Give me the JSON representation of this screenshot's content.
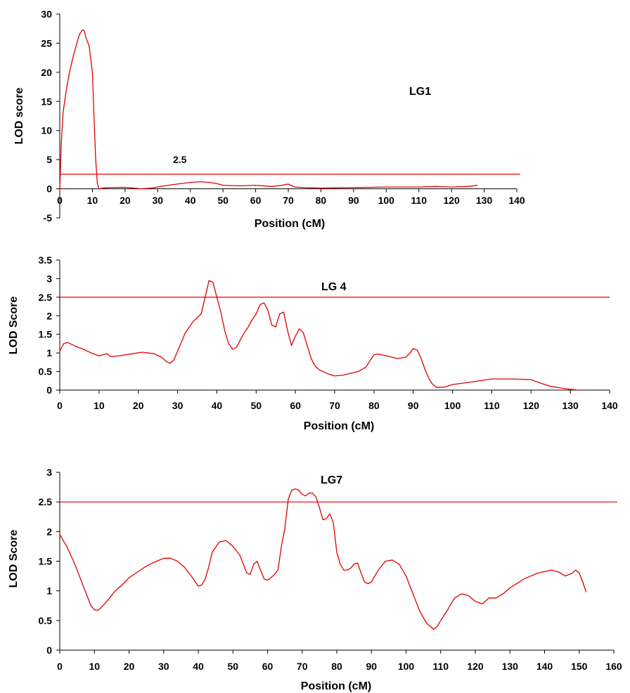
{
  "chart_data": [
    {
      "type": "line",
      "annotation": "LG1",
      "threshold_label": "2.5",
      "threshold": 2.5,
      "xlabel": "Position (cM)",
      "ylabel": "LOD score",
      "xlim": [
        0,
        140
      ],
      "ylim": [
        -5,
        30
      ],
      "x_ticks": [
        0,
        10,
        20,
        30,
        40,
        50,
        60,
        70,
        80,
        90,
        100,
        110,
        120,
        130,
        140
      ],
      "y_ticks": [
        -5,
        0,
        5,
        10,
        15,
        20,
        25,
        30
      ],
      "threshold_x_range": [
        0,
        141
      ],
      "series_color": "#e00000",
      "series": [
        {
          "x": [
            0,
            0.5,
            1,
            2,
            3,
            4,
            5,
            6,
            7,
            7.5,
            8,
            9,
            10,
            10.5,
            11,
            11.5,
            12,
            12.5,
            13,
            15,
            20,
            25,
            28,
            32,
            36,
            40,
            43,
            46,
            48,
            50,
            55,
            60,
            65,
            68,
            70,
            72,
            75,
            80,
            90,
            100,
            110,
            115,
            120,
            125,
            128
          ],
          "y": [
            0,
            8,
            13,
            17,
            20,
            22.5,
            24.5,
            26.5,
            27.3,
            27.1,
            26,
            24.5,
            20,
            12,
            5,
            1,
            0,
            0,
            0.1,
            0.2,
            0.25,
            0,
            0.1,
            0.5,
            0.8,
            1.1,
            1.2,
            1.1,
            0.9,
            0.6,
            0.5,
            0.6,
            0.4,
            0.6,
            0.8,
            0.3,
            0.2,
            0.1,
            0.2,
            0.3,
            0.3,
            0.4,
            0.3,
            0.4,
            0.6
          ]
        }
      ]
    },
    {
      "type": "line",
      "annotation": "LG 4",
      "threshold": 2.5,
      "xlabel": "Position (cM)",
      "ylabel": "LOD Score",
      "xlim": [
        0,
        140
      ],
      "ylim": [
        0,
        3.5
      ],
      "x_ticks": [
        0,
        10,
        20,
        30,
        40,
        50,
        60,
        70,
        80,
        90,
        100,
        110,
        120,
        130,
        140
      ],
      "y_ticks": [
        0,
        0.5,
        1,
        1.5,
        2,
        2.5,
        3,
        3.5
      ],
      "y_tick_labels": [
        "0",
        "0.5",
        "1",
        "1.5",
        "2",
        "2.5",
        "3",
        "3.5"
      ],
      "threshold_x_range": [
        0,
        140
      ],
      "series_color": "#e00000",
      "series": [
        {
          "x": [
            0,
            1,
            2,
            4,
            6,
            8,
            10,
            11,
            12,
            13,
            15,
            18,
            21,
            24,
            26,
            27,
            28,
            29,
            30,
            31,
            32,
            34,
            35,
            36,
            37,
            38,
            39,
            40,
            41,
            42,
            43,
            44,
            45,
            46,
            47,
            48,
            49,
            50,
            51,
            52,
            53,
            54,
            55,
            56,
            57,
            58,
            59,
            60,
            61,
            62,
            63,
            64,
            65,
            66,
            68,
            70,
            72,
            74,
            76,
            78,
            79,
            80,
            81,
            82,
            84,
            86,
            88,
            89,
            90,
            91,
            92,
            93,
            94,
            95,
            96,
            98,
            100,
            105,
            110,
            115,
            120,
            122,
            125,
            128,
            130,
            132
          ],
          "y": [
            1.05,
            1.25,
            1.28,
            1.18,
            1.1,
            1.0,
            0.92,
            0.95,
            0.98,
            0.9,
            0.92,
            0.97,
            1.02,
            0.98,
            0.88,
            0.78,
            0.72,
            0.8,
            1.05,
            1.3,
            1.55,
            1.85,
            1.95,
            2.05,
            2.5,
            2.95,
            2.9,
            2.5,
            2.1,
            1.6,
            1.25,
            1.1,
            1.15,
            1.35,
            1.55,
            1.7,
            1.9,
            2.05,
            2.3,
            2.35,
            2.15,
            1.75,
            1.7,
            2.05,
            2.1,
            1.6,
            1.2,
            1.45,
            1.65,
            1.55,
            1.2,
            0.85,
            0.65,
            0.55,
            0.45,
            0.38,
            0.4,
            0.45,
            0.5,
            0.62,
            0.8,
            0.95,
            0.97,
            0.95,
            0.9,
            0.85,
            0.88,
            0.97,
            1.12,
            1.08,
            0.85,
            0.55,
            0.3,
            0.15,
            0.07,
            0.08,
            0.15,
            0.22,
            0.3,
            0.3,
            0.28,
            0.2,
            0.1,
            0.05,
            0.02,
            0.0
          ]
        }
      ]
    },
    {
      "type": "line",
      "annotation": "LG7",
      "threshold": 2.5,
      "xlabel": "Position (cM)",
      "ylabel": "LOD Score",
      "xlim": [
        0,
        160
      ],
      "ylim": [
        0,
        3
      ],
      "x_ticks": [
        0,
        10,
        20,
        30,
        40,
        50,
        60,
        70,
        80,
        90,
        100,
        110,
        120,
        130,
        140,
        150,
        160
      ],
      "y_ticks": [
        0,
        0.5,
        1,
        1.5,
        2,
        2.5,
        3
      ],
      "y_tick_labels": [
        "0",
        "0.5",
        "1",
        "1.5",
        "2",
        "2.5",
        "3"
      ],
      "threshold_x_range": [
        0,
        161
      ],
      "series_color": "#e00000",
      "series": [
        {
          "x": [
            0,
            2,
            4,
            6,
            8,
            9,
            10,
            11,
            12,
            14,
            16,
            18,
            20,
            24,
            26,
            28,
            30,
            32,
            34,
            36,
            38,
            40,
            41,
            42,
            43,
            44,
            46,
            48,
            50,
            52,
            54,
            55,
            56,
            57,
            58,
            59,
            60,
            61,
            62,
            63,
            64,
            65,
            66,
            67,
            68,
            69,
            70,
            71,
            72,
            73,
            74,
            75,
            76,
            77,
            78,
            79,
            80,
            81,
            82,
            83,
            84,
            85,
            86,
            87,
            88,
            89,
            90,
            92,
            94,
            96,
            98,
            100,
            102,
            104,
            106,
            108,
            109,
            110,
            112,
            114,
            116,
            118,
            120,
            122,
            124,
            126,
            128,
            130,
            134,
            138,
            142,
            144,
            146,
            148,
            149,
            150,
            151,
            152
          ],
          "y": [
            1.95,
            1.75,
            1.5,
            1.2,
            0.9,
            0.75,
            0.68,
            0.67,
            0.72,
            0.85,
            1.0,
            1.1,
            1.22,
            1.38,
            1.45,
            1.5,
            1.55,
            1.55,
            1.5,
            1.4,
            1.25,
            1.08,
            1.1,
            1.2,
            1.4,
            1.65,
            1.82,
            1.85,
            1.75,
            1.6,
            1.3,
            1.28,
            1.45,
            1.5,
            1.35,
            1.2,
            1.18,
            1.22,
            1.28,
            1.35,
            1.75,
            2.05,
            2.55,
            2.7,
            2.72,
            2.7,
            2.63,
            2.6,
            2.65,
            2.65,
            2.58,
            2.4,
            2.2,
            2.22,
            2.3,
            2.15,
            1.65,
            1.45,
            1.35,
            1.35,
            1.38,
            1.45,
            1.47,
            1.3,
            1.15,
            1.12,
            1.15,
            1.35,
            1.5,
            1.52,
            1.45,
            1.25,
            0.95,
            0.65,
            0.45,
            0.35,
            0.4,
            0.5,
            0.68,
            0.88,
            0.95,
            0.92,
            0.82,
            0.78,
            0.88,
            0.88,
            0.95,
            1.05,
            1.2,
            1.3,
            1.35,
            1.32,
            1.25,
            1.3,
            1.35,
            1.3,
            1.15,
            0.98
          ]
        }
      ]
    }
  ]
}
